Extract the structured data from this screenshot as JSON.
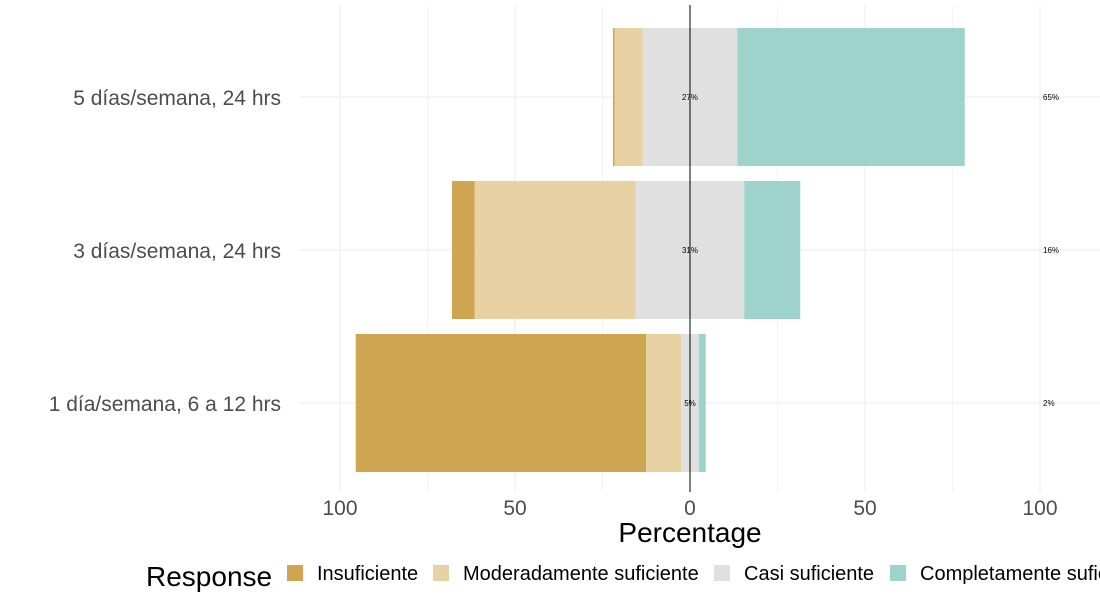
{
  "chart_data": {
    "type": "bar",
    "orientation": "horizontal",
    "stacking": "diverging",
    "categories": [
      "5 días/semana, 24 hrs",
      "3 días/semana, 24 hrs",
      "1 día/semana, 6 a 12 hrs"
    ],
    "series": [
      {
        "name": "Insuficiente",
        "color": "#cfa552",
        "values": [
          0.5,
          6.5,
          83
        ]
      },
      {
        "name": "Moderadamente suficiente",
        "color": "#e8d2a4",
        "values": [
          8,
          46,
          10
        ]
      },
      {
        "name": "Casi suficiente",
        "color": "#e0e0e0",
        "values": [
          27,
          31,
          5
        ]
      },
      {
        "name": "Completamente suficiente",
        "color": "#9ed3cc",
        "values": [
          65,
          16,
          2
        ]
      }
    ],
    "center_labels": [
      "27%",
      "31%",
      "5%"
    ],
    "right_labels": [
      "65%",
      "16%",
      "2%"
    ],
    "xlabel": "Percentage",
    "ylabel": "",
    "title": "",
    "xlim": [
      -100,
      100
    ],
    "xticks": [
      -100,
      -50,
      0,
      50,
      100
    ],
    "xtick_labels": [
      "100",
      "50",
      "0",
      "50",
      "100"
    ],
    "grid": true,
    "legend": {
      "title": "Response",
      "position": "bottom"
    }
  }
}
